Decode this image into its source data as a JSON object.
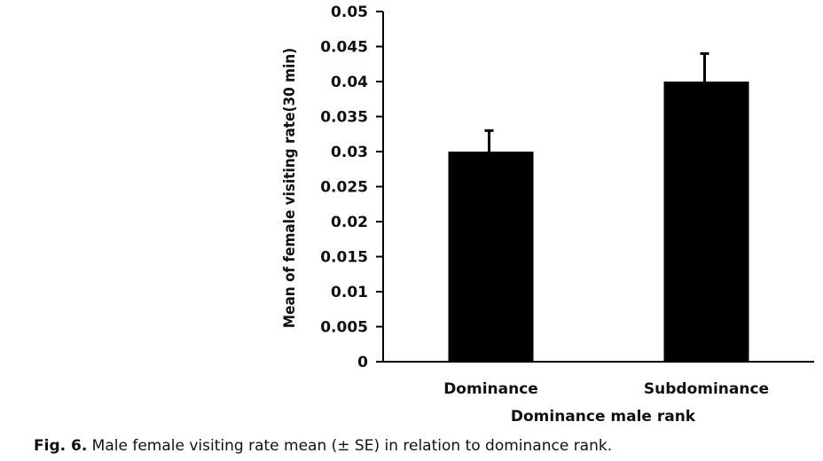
{
  "chart_data": {
    "type": "bar",
    "categories": [
      "Dominance",
      "Subdominance"
    ],
    "values": [
      0.03,
      0.04
    ],
    "errors": [
      0.003,
      0.004
    ],
    "title": "",
    "xlabel": "Dominance male rank",
    "ylabel": "Mean of female visiting rate(30 min)",
    "ylim": [
      0,
      0.05
    ],
    "yticks": [
      0,
      0.005,
      0.01,
      0.015,
      0.02,
      0.025,
      0.03,
      0.035,
      0.04,
      0.045,
      0.05
    ],
    "ytick_labels": [
      "0",
      "0.005",
      "0.01",
      "0.015",
      "0.02",
      "0.025",
      "0.03",
      "0.035",
      "0.04",
      "0.045",
      "0.05"
    ],
    "grid": false,
    "bar_color": "#000000"
  },
  "caption": {
    "label": "Fig. 6.",
    "text": " Male female visiting rate mean (± SE) in relation to dominance rank."
  }
}
